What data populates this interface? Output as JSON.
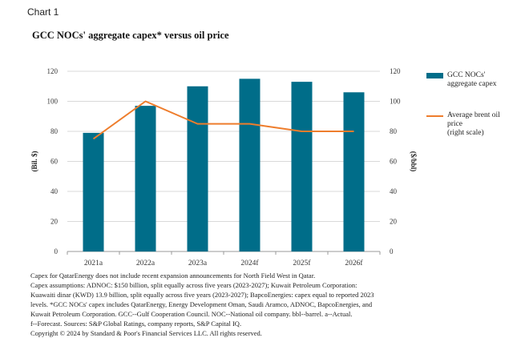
{
  "header": {
    "label": "Chart 1",
    "title": "GCC NOCs' aggregate capex* versus oil price"
  },
  "colors": {
    "bar": "#006d89",
    "line": "#ee7d2c",
    "grid": "#d9d9d9",
    "axis": "#999999"
  },
  "chart_data": {
    "type": "bar",
    "title": "GCC NOCs' aggregate capex* versus oil price",
    "categories": [
      "2021a",
      "2022a",
      "2023a",
      "2024f",
      "2025f",
      "2026f"
    ],
    "ylabel": "(Bil. $)",
    "y2label": "($/bbl)",
    "ylim": [
      0,
      120
    ],
    "y2lim": [
      0,
      120
    ],
    "yticks": [
      "0",
      "20",
      "40",
      "60",
      "80",
      "100",
      "120"
    ],
    "y2ticks": [
      "0",
      "20",
      "40",
      "60",
      "80",
      "100",
      "120"
    ],
    "grid": true,
    "legend_position": "right",
    "series": [
      {
        "name": "GCC NOCs'\naggregate capex",
        "type": "bar",
        "axis": "left",
        "values": [
          79,
          97,
          110,
          115,
          113,
          106
        ]
      },
      {
        "name": "Average brent oil\nprice\n(right scale)",
        "type": "line",
        "axis": "right",
        "values": [
          75,
          100,
          85,
          85,
          80,
          80
        ]
      }
    ]
  },
  "notes": {
    "line1": "Capex for QatarEnergy does not include recent expansion announcements for North Field West in Qatar.",
    "line2": "Capex assumptions: ADNOC: $150 billion, split equally across five years (2023-2027); Kuwait Petroleum Corporation:",
    "line3": "Kuawaiti dinar (KWD) 13.9 billion, split equally across five years (2023-2027); BapcoEnergies: capex equal to reported 2023",
    "line4": "levels. *GCC NOCs' capex includes QatarEnergy, Energy Development Oman, Saudi Aramco, ADNOC, BapcoEnergies, and",
    "line5": "Kuwait Petroleum Corporation. GCC--Gulf Cooperation Council. NOC--National oil company. bbl--barrel. a--Actual.",
    "line6": "f--Forecast. Sources: S&P Global Ratings, company reports, S&P Capital IQ.",
    "copyright": "Copyright © 2024 by Standard & Poor's Financial Services LLC. All rights reserved."
  }
}
